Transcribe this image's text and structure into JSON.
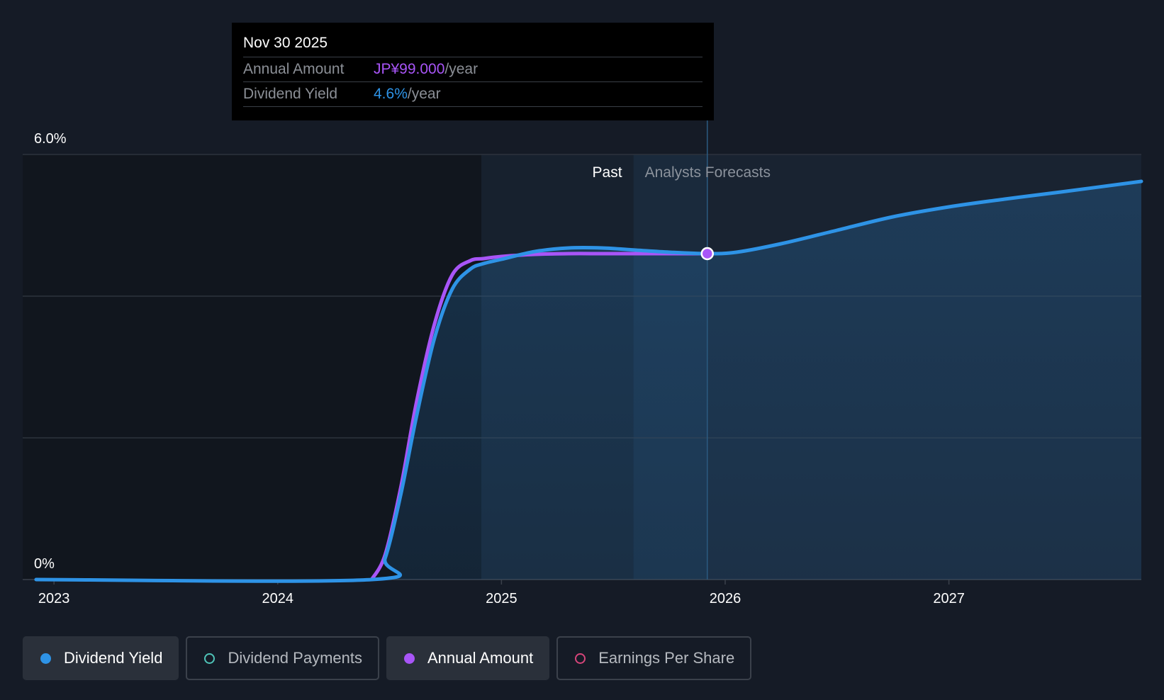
{
  "tooltip": {
    "date": "Nov 30 2025",
    "rows": [
      {
        "label": "Annual Amount",
        "value": "JP¥99.000",
        "unit": "/year"
      },
      {
        "label": "Dividend Yield",
        "value": "4.6%",
        "unit": "/year"
      }
    ]
  },
  "legend": [
    {
      "label": "Dividend Yield",
      "active": true,
      "color": "#2e93e6",
      "filled": true
    },
    {
      "label": "Dividend Payments",
      "active": false,
      "color": "#4fc4b8",
      "filled": false
    },
    {
      "label": "Annual Amount",
      "active": true,
      "color": "#a855f7",
      "filled": true
    },
    {
      "label": "Earnings Per Share",
      "active": false,
      "color": "#d6457a",
      "filled": false
    }
  ],
  "colors": {
    "background": "#151b26",
    "yield_line": "#2e93e6",
    "amount_line": "#a855f7",
    "grid": "#2d333d"
  },
  "chart_data": {
    "type": "line",
    "title": "",
    "xlabel": "",
    "ylabel": "",
    "ylim": [
      0,
      6
    ],
    "y_tick_labels": [
      "6.0%",
      "0%"
    ],
    "x_tick_labels": [
      "2023",
      "2024",
      "2025",
      "2026",
      "2027"
    ],
    "x_ticks": [
      2023,
      2024,
      2025,
      2026,
      2027
    ],
    "xlim": [
      2022.86,
      2027.86
    ],
    "gridlines_y": [
      2,
      4,
      6
    ],
    "region_labels": {
      "past": "Past",
      "forecast": "Analysts Forecasts"
    },
    "past_region_start": 2024.91,
    "highlight_region_start": 2025.59,
    "divider_x": 2025.92,
    "highlight_point": {
      "x": 2025.92,
      "y": 4.6
    },
    "series": [
      {
        "name": "Dividend Yield",
        "color": "#2e93e6",
        "x": [
          2022.92,
          2024.42,
          2024.48,
          2024.55,
          2024.62,
          2024.7,
          2024.78,
          2024.86,
          2024.92,
          2025.0,
          2025.15,
          2025.3,
          2025.45,
          2025.6,
          2025.75,
          2025.92,
          2026.05,
          2026.25,
          2026.5,
          2026.75,
          2027.0,
          2027.25,
          2027.5,
          2027.86
        ],
        "values": [
          0,
          0,
          0.3,
          1.2,
          2.3,
          3.4,
          4.1,
          4.38,
          4.46,
          4.52,
          4.63,
          4.68,
          4.68,
          4.65,
          4.62,
          4.6,
          4.62,
          4.74,
          4.93,
          5.12,
          5.26,
          5.37,
          5.47,
          5.62
        ]
      },
      {
        "name": "Annual Amount",
        "color": "#a855f7",
        "x": [
          2024.42,
          2024.48,
          2024.55,
          2024.62,
          2024.7,
          2024.78,
          2024.86,
          2024.92,
          2025.0,
          2025.15,
          2025.3,
          2025.45,
          2025.6,
          2025.75,
          2025.92
        ],
        "values": [
          0,
          0.35,
          1.3,
          2.5,
          3.6,
          4.3,
          4.5,
          4.53,
          4.56,
          4.59,
          4.6,
          4.6,
          4.6,
          4.6,
          4.6
        ]
      }
    ]
  }
}
